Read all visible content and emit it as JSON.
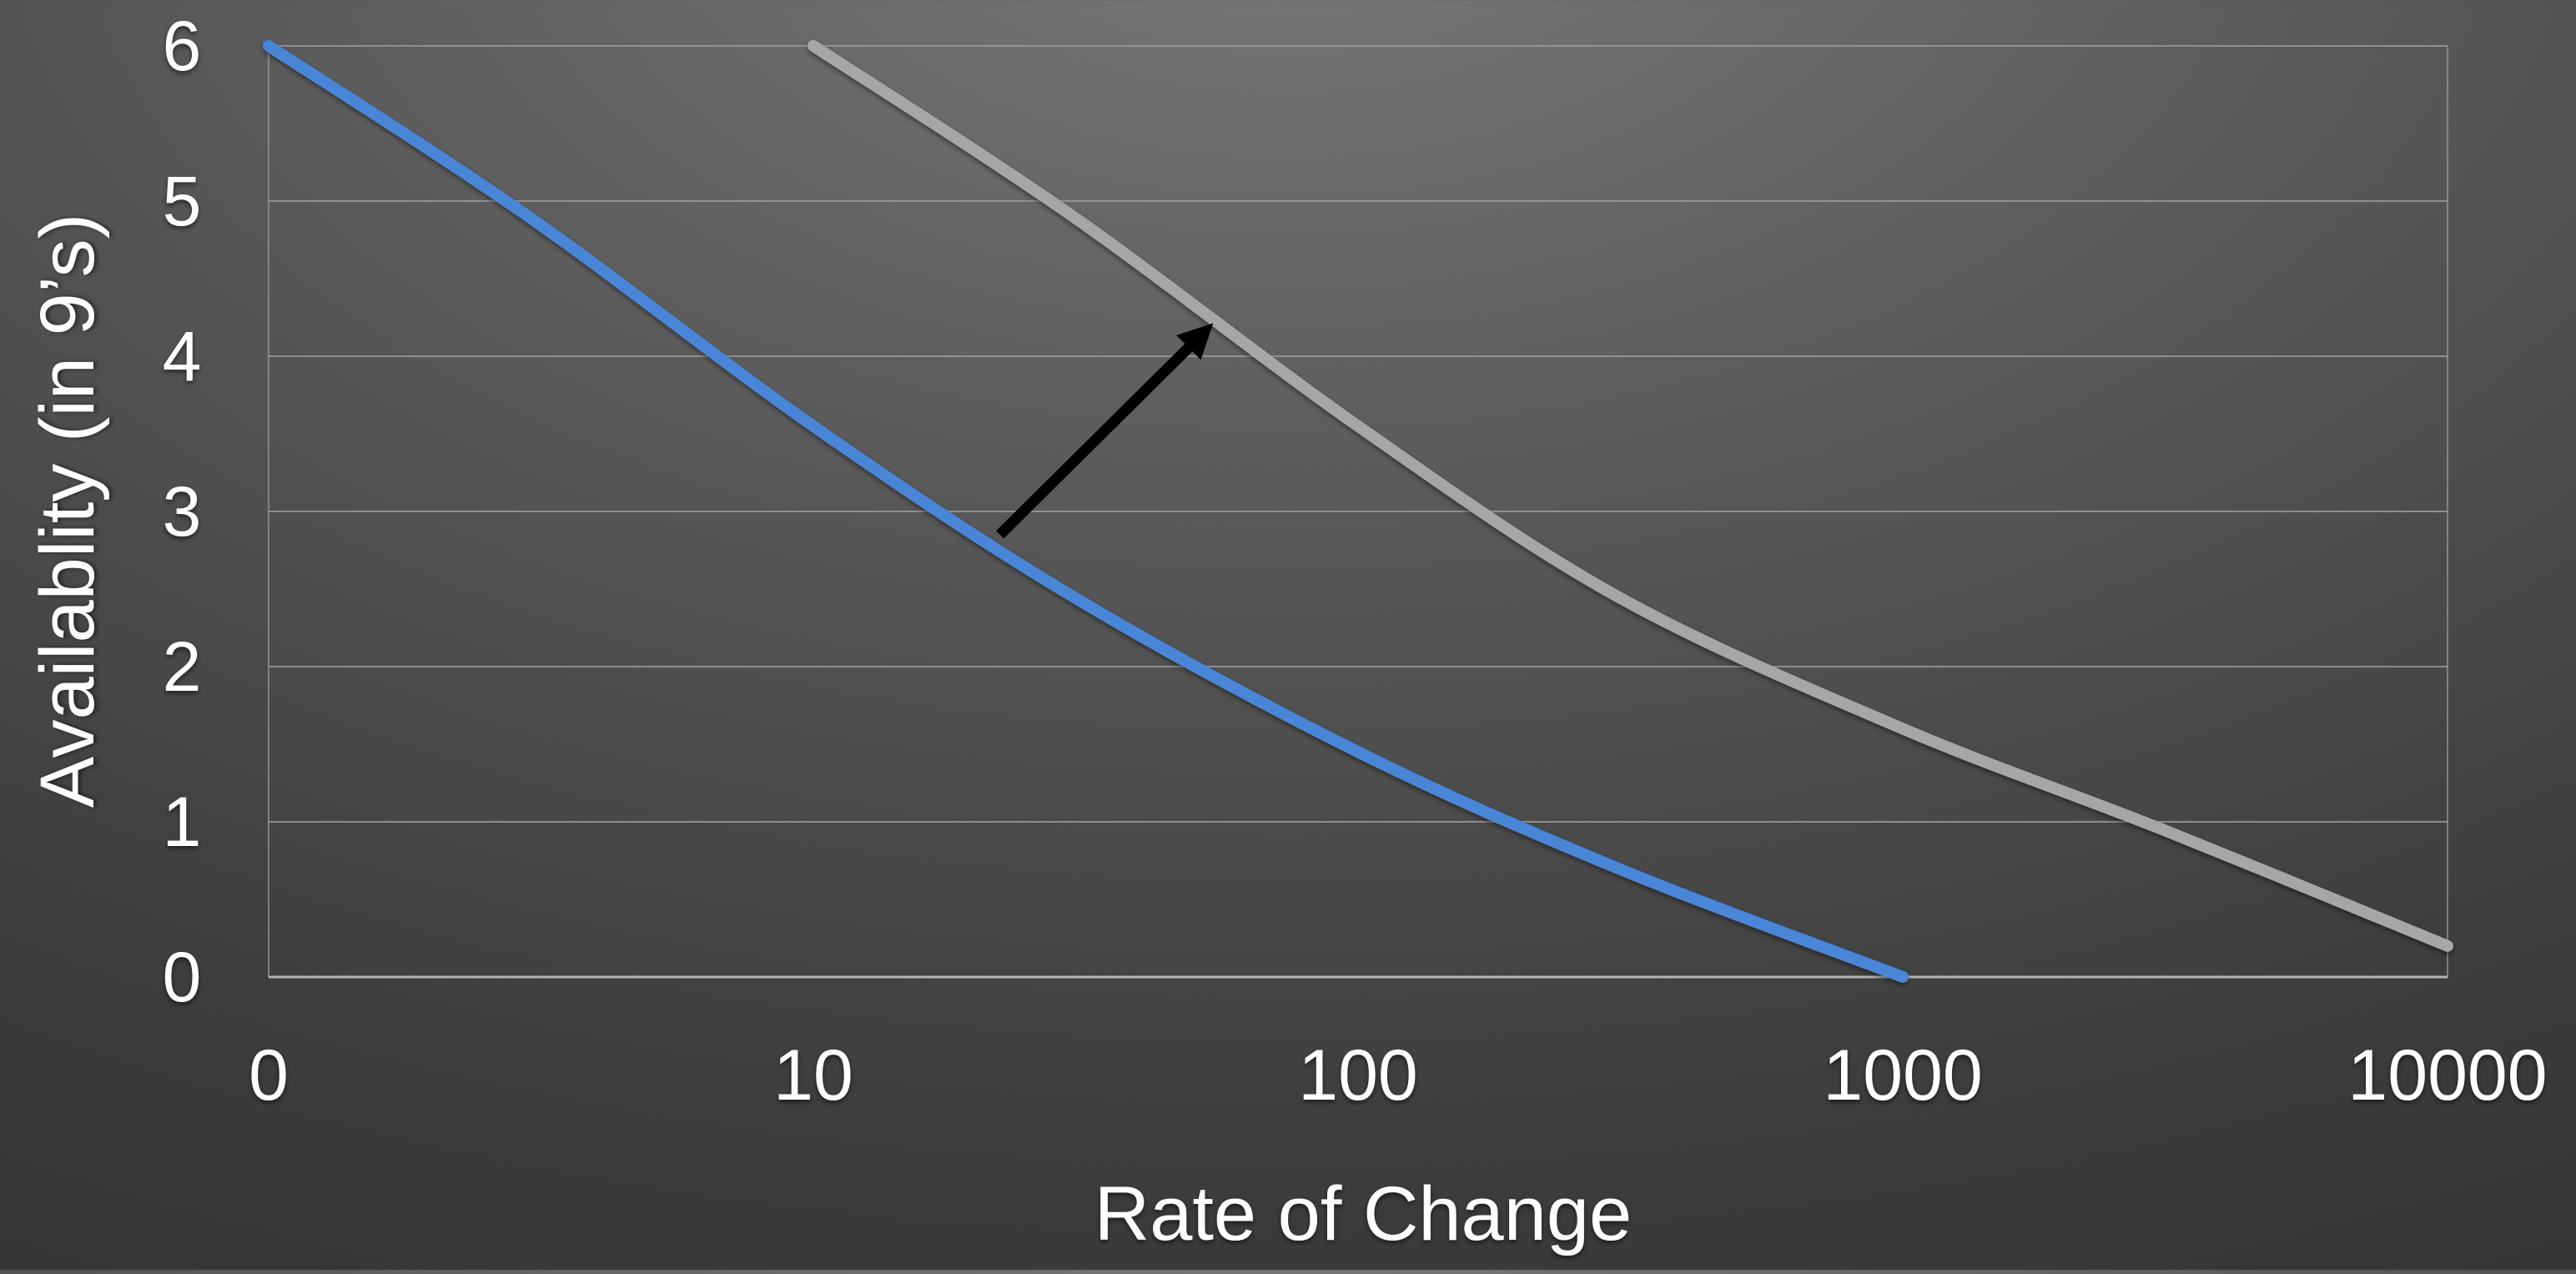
{
  "chart_data": {
    "type": "line",
    "title": "",
    "xlabel": "Rate of Change",
    "ylabel": "Availablity (in 9’s)",
    "x_scale": "log",
    "x_ticks": [
      "0",
      "10",
      "100",
      "1000",
      "10000"
    ],
    "y_ticks": [
      "0",
      "1",
      "2",
      "3",
      "4",
      "5",
      "6"
    ],
    "ylim": [
      0,
      6
    ],
    "grid": true,
    "legend": "none",
    "series": [
      {
        "color": "#4a86d8",
        "points": [
          {
            "x": 1,
            "y": 6.0
          },
          {
            "x": 3,
            "y": 4.9
          },
          {
            "x": 10,
            "y": 3.55
          },
          {
            "x": 30,
            "y": 2.45
          },
          {
            "x": 100,
            "y": 1.45
          },
          {
            "x": 300,
            "y": 0.7
          },
          {
            "x": 1000,
            "y": 0.0
          }
        ]
      },
      {
        "color": "#a6a6a6",
        "points": [
          {
            "x": 10,
            "y": 6.0
          },
          {
            "x": 30,
            "y": 4.9
          },
          {
            "x": 100,
            "y": 3.55
          },
          {
            "x": 300,
            "y": 2.45
          },
          {
            "x": 1000,
            "y": 1.6
          },
          {
            "x": 3000,
            "y": 0.95
          },
          {
            "x": 10000,
            "y": 0.2
          }
        ]
      }
    ],
    "annotations": [
      {
        "type": "arrow",
        "color": "#000000",
        "from": {
          "x": 22,
          "y": 2.85
        },
        "to": {
          "x": 52,
          "y": 4.15
        }
      }
    ]
  }
}
